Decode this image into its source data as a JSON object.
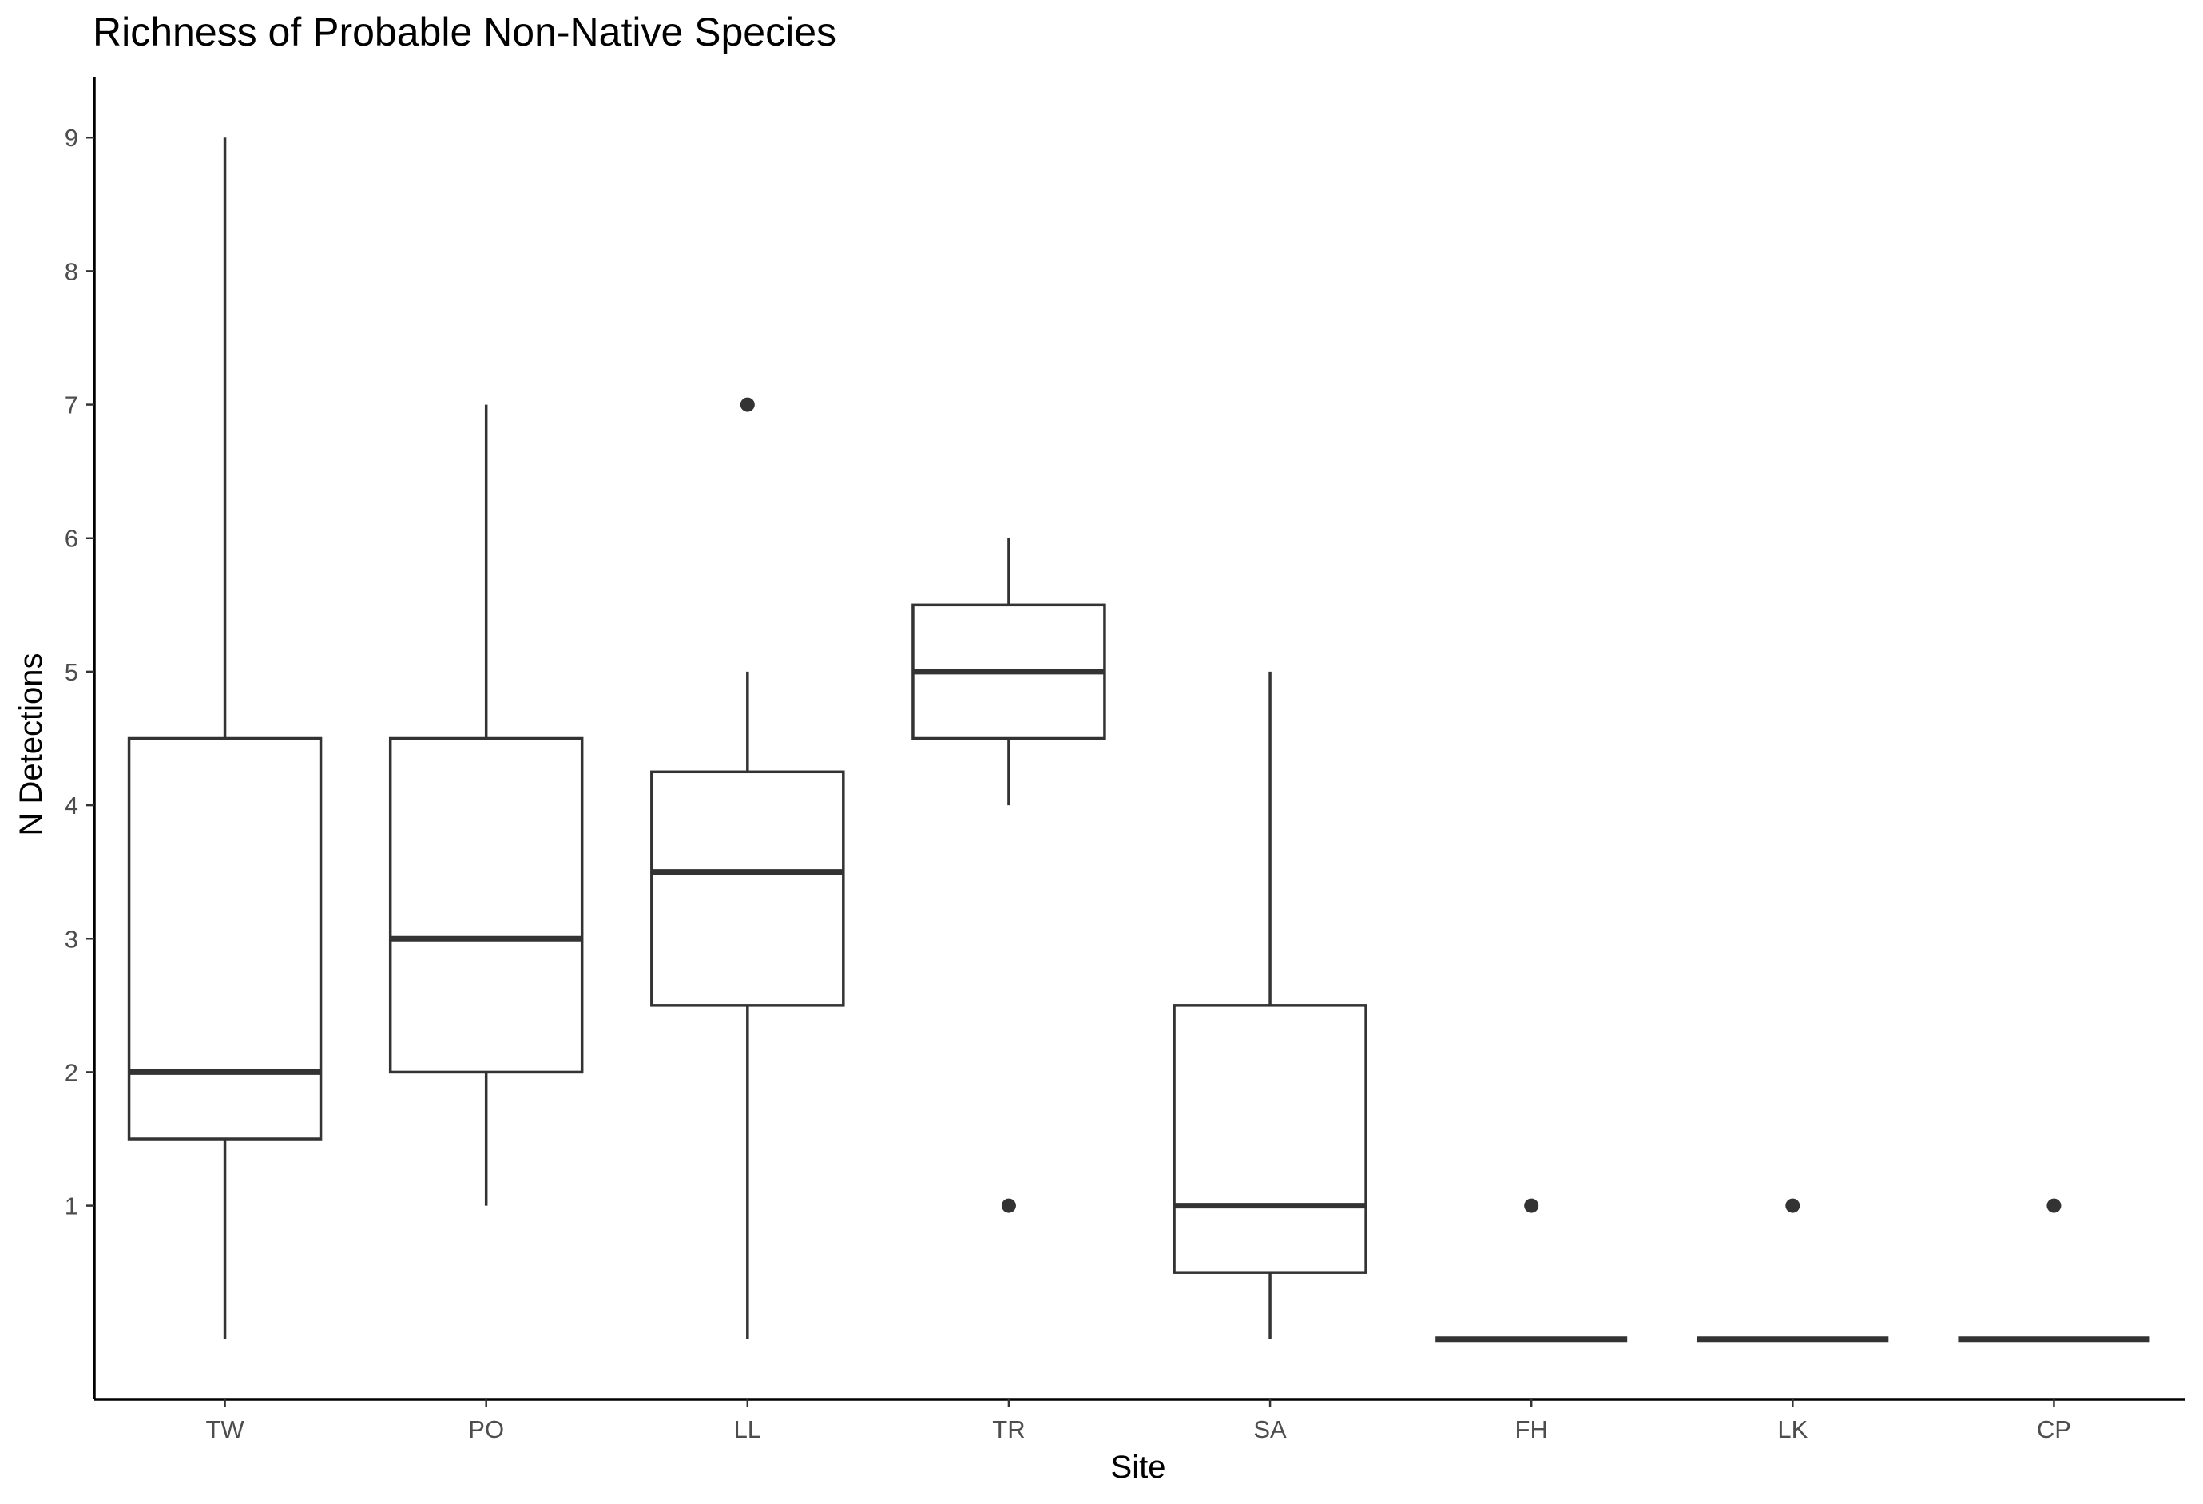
{
  "chart_data": {
    "type": "box",
    "title": "Richness of Probable Non-Native Species",
    "xlabel": "Site",
    "ylabel": "N Detections",
    "categories": [
      "TW",
      "PO",
      "LL",
      "TR",
      "SA",
      "FH",
      "LK",
      "CP"
    ],
    "y_ticks": [
      1,
      2,
      3,
      4,
      5,
      6,
      7,
      8,
      9
    ],
    "ylim": [
      -0.45,
      9.45
    ],
    "boxes": [
      {
        "site": "TW",
        "whisker_low": 0,
        "q1": 1.5,
        "median": 2,
        "q3": 4.5,
        "whisker_high": 9,
        "outliers": []
      },
      {
        "site": "PO",
        "whisker_low": 1,
        "q1": 2,
        "median": 3,
        "q3": 4.5,
        "whisker_high": 7,
        "outliers": []
      },
      {
        "site": "LL",
        "whisker_low": 0,
        "q1": 2.5,
        "median": 3.5,
        "q3": 4.25,
        "whisker_high": 5,
        "outliers": [
          7
        ]
      },
      {
        "site": "TR",
        "whisker_low": 4,
        "q1": 4.5,
        "median": 5,
        "q3": 5.5,
        "whisker_high": 6,
        "outliers": [
          1
        ]
      },
      {
        "site": "SA",
        "whisker_low": 0,
        "q1": 0.5,
        "median": 1,
        "q3": 2.5,
        "whisker_high": 5,
        "outliers": []
      },
      {
        "site": "FH",
        "whisker_low": 0,
        "q1": 0,
        "median": 0,
        "q3": 0,
        "whisker_high": 0,
        "outliers": [
          1
        ]
      },
      {
        "site": "LK",
        "whisker_low": 0,
        "q1": 0,
        "median": 0,
        "q3": 0,
        "whisker_high": 0,
        "outliers": [
          1
        ]
      },
      {
        "site": "CP",
        "whisker_low": 0,
        "q1": 0,
        "median": 0,
        "q3": 0,
        "whisker_high": 0,
        "outliers": [
          1
        ]
      }
    ],
    "grid": false,
    "legend": "none",
    "colors": {
      "box_line": "#333333",
      "box_fill": "#ffffff",
      "axis": "#000000",
      "tick_text": "#4d4d4d"
    }
  }
}
